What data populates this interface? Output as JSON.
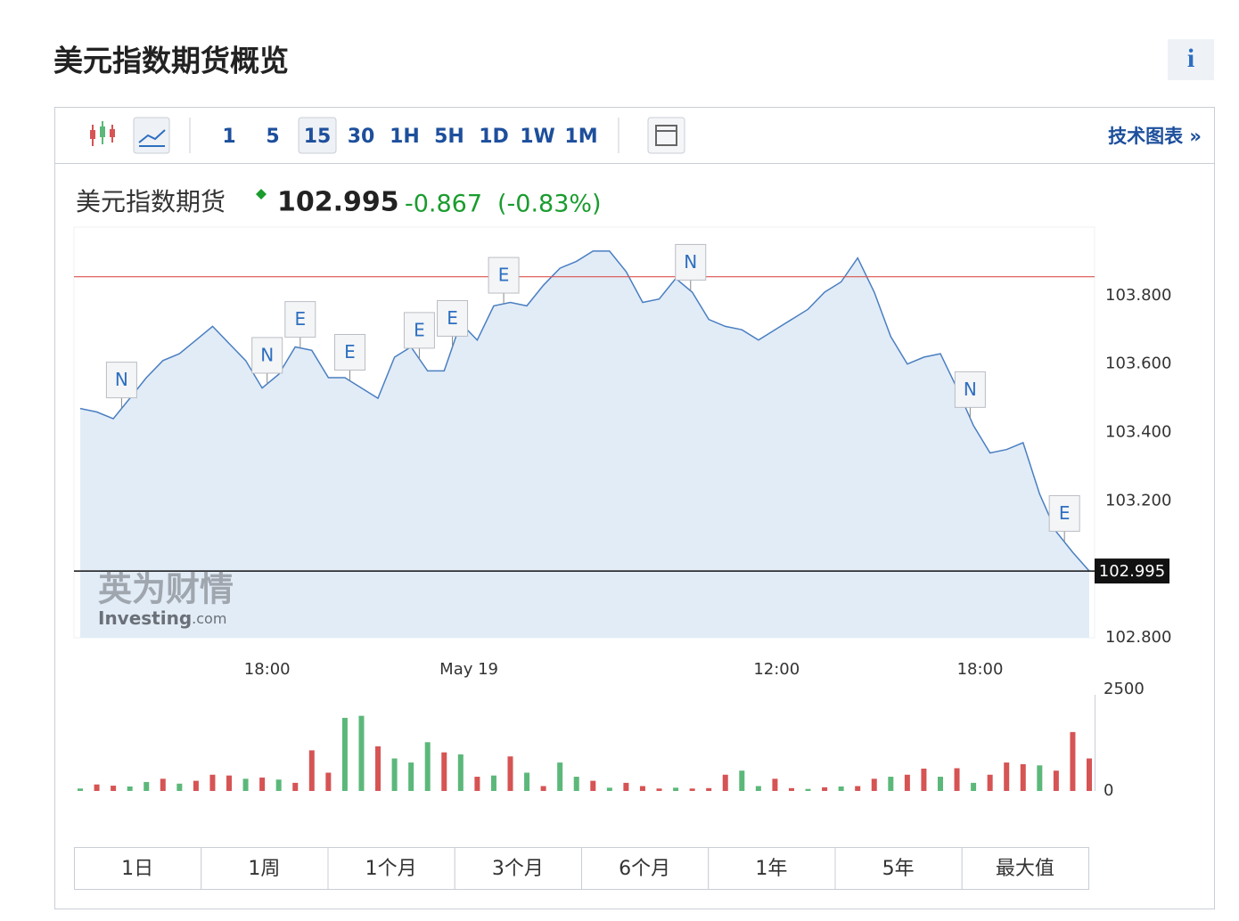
{
  "header": {
    "title": "美元指数期货概览",
    "info": "i"
  },
  "toolbar": {
    "intervals": [
      "1",
      "5",
      "15",
      "30",
      "1H",
      "5H",
      "1D",
      "1W",
      "1M"
    ],
    "active_interval": 2,
    "link": "技术图表 »"
  },
  "quote": {
    "name": "美元指数期货",
    "price": 102.995,
    "change": -0.867,
    "change_percent": "(-0.83%)"
  },
  "chart_data": {
    "type": "area",
    "color": "#4a7fc1",
    "fill": "#e2ecf7",
    "values": [
      103.47,
      103.46,
      103.44,
      103.5,
      103.56,
      103.61,
      103.63,
      103.67,
      103.71,
      103.66,
      103.61,
      103.53,
      103.57,
      103.65,
      103.64,
      103.56,
      103.56,
      103.53,
      103.5,
      103.62,
      103.65,
      103.58,
      103.58,
      103.72,
      103.67,
      103.77,
      103.78,
      103.77,
      103.83,
      103.88,
      103.9,
      103.93,
      103.93,
      103.87,
      103.78,
      103.79,
      103.85,
      103.81,
      103.73,
      103.71,
      103.7,
      103.67,
      103.7,
      103.73,
      103.76,
      103.81,
      103.84,
      103.91,
      103.81,
      103.68,
      103.6,
      103.62,
      103.63,
      103.53,
      103.42,
      103.34,
      103.35,
      103.37,
      103.22,
      103.11,
      103.05,
      102.995
    ],
    "xlim": [
      0,
      61
    ],
    "xticks": [
      {
        "value": 11.3,
        "label": "18:00"
      },
      {
        "value": 23.5,
        "label": "May 19"
      },
      {
        "value": 42.1,
        "label": "12:00"
      },
      {
        "value": 54.4,
        "label": "18:00"
      }
    ],
    "ylim": [
      102.8,
      104.0
    ],
    "yticks": [
      {
        "value": 102.8,
        "label": "102.800"
      },
      {
        "value": 103.2,
        "label": "103.200"
      },
      {
        "value": 103.4,
        "label": "103.400"
      },
      {
        "value": 103.6,
        "label": "103.600"
      },
      {
        "value": 103.8,
        "label": "103.800"
      }
    ],
    "reference_line": {
      "value": 103.855,
      "color": "#d9534f"
    },
    "events": [
      {
        "x": 2.5,
        "label": "N"
      },
      {
        "x": 11.3,
        "label": "N"
      },
      {
        "x": 13.3,
        "label": "E"
      },
      {
        "x": 16.3,
        "label": "E"
      },
      {
        "x": 20.5,
        "label": "E"
      },
      {
        "x": 22.5,
        "label": "E"
      },
      {
        "x": 25.6,
        "label": "E"
      },
      {
        "x": 36.9,
        "label": "N"
      },
      {
        "x": 53.8,
        "label": "N"
      },
      {
        "x": 59.5,
        "label": "E"
      }
    ],
    "volume": {
      "ylim": [
        0,
        2500
      ],
      "yticks": [
        0,
        2500
      ],
      "values": [
        60,
        160,
        130,
        110,
        220,
        300,
        180,
        250,
        400,
        380,
        300,
        330,
        280,
        200,
        1000,
        450,
        1800,
        1850,
        1100,
        800,
        700,
        1200,
        950,
        900,
        350,
        380,
        850,
        450,
        120,
        700,
        350,
        250,
        80,
        200,
        120,
        60,
        80,
        60,
        70,
        400,
        500,
        120,
        300,
        70,
        50,
        90,
        110,
        120,
        300,
        350,
        400,
        550,
        350,
        560,
        200,
        400,
        700,
        660,
        630,
        500,
        1450,
        800
      ],
      "colors": [
        "#5cb87a",
        "#d65454",
        "#d65454",
        "#5cb87a",
        "#5cb87a",
        "#d65454",
        "#5cb87a",
        "#d65454",
        "#d65454",
        "#d65454",
        "#5cb87a",
        "#d65454",
        "#5cb87a",
        "#d65454",
        "#d65454",
        "#d65454",
        "#5cb87a",
        "#5cb87a",
        "#d65454",
        "#5cb87a",
        "#5cb87a",
        "#5cb87a",
        "#d65454",
        "#5cb87a",
        "#d65454",
        "#5cb87a",
        "#d65454",
        "#5cb87a",
        "#d65454",
        "#5cb87a",
        "#5cb87a",
        "#d65454",
        "#5cb87a",
        "#d65454",
        "#d65454",
        "#d65454",
        "#5cb87a",
        "#d65454",
        "#d65454",
        "#d65454",
        "#5cb87a",
        "#5cb87a",
        "#d65454",
        "#d65454",
        "#5cb87a",
        "#d65454",
        "#5cb87a",
        "#d65454",
        "#d65454",
        "#5cb87a",
        "#d65454",
        "#d65454",
        "#5cb87a",
        "#d65454",
        "#5cb87a",
        "#d65454",
        "#d65454",
        "#d65454",
        "#5cb87a",
        "#d65454",
        "#d65454",
        "#d65454"
      ]
    }
  },
  "watermark": {
    "cn": "英为财情",
    "en": "Investing",
    "suffix": ".com"
  },
  "ranges": [
    "1日",
    "1周",
    "1个月",
    "3个月",
    "6个月",
    "1年",
    "5年",
    "最大值"
  ]
}
